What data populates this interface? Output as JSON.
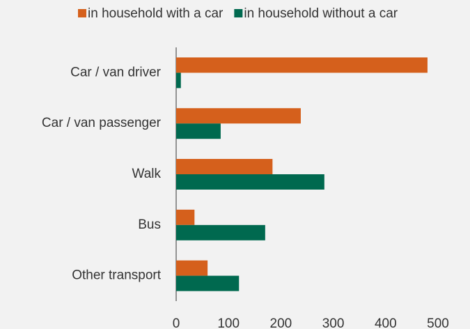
{
  "chart_data": {
    "type": "hbar",
    "categories": [
      "Car / van driver",
      "Car / van passenger",
      "Walk",
      "Bus",
      "Other transport"
    ],
    "series": [
      {
        "name": "in household with a car",
        "color": "#d5601c",
        "values": [
          480,
          238,
          184,
          35,
          60
        ]
      },
      {
        "name": "in household without a car",
        "color": "#00694f",
        "values": [
          9,
          85,
          283,
          170,
          120
        ]
      }
    ],
    "xlim": [
      0,
      500
    ],
    "xticks": [
      0,
      100,
      200,
      300,
      400,
      500
    ],
    "grid": false,
    "legend": "top"
  }
}
